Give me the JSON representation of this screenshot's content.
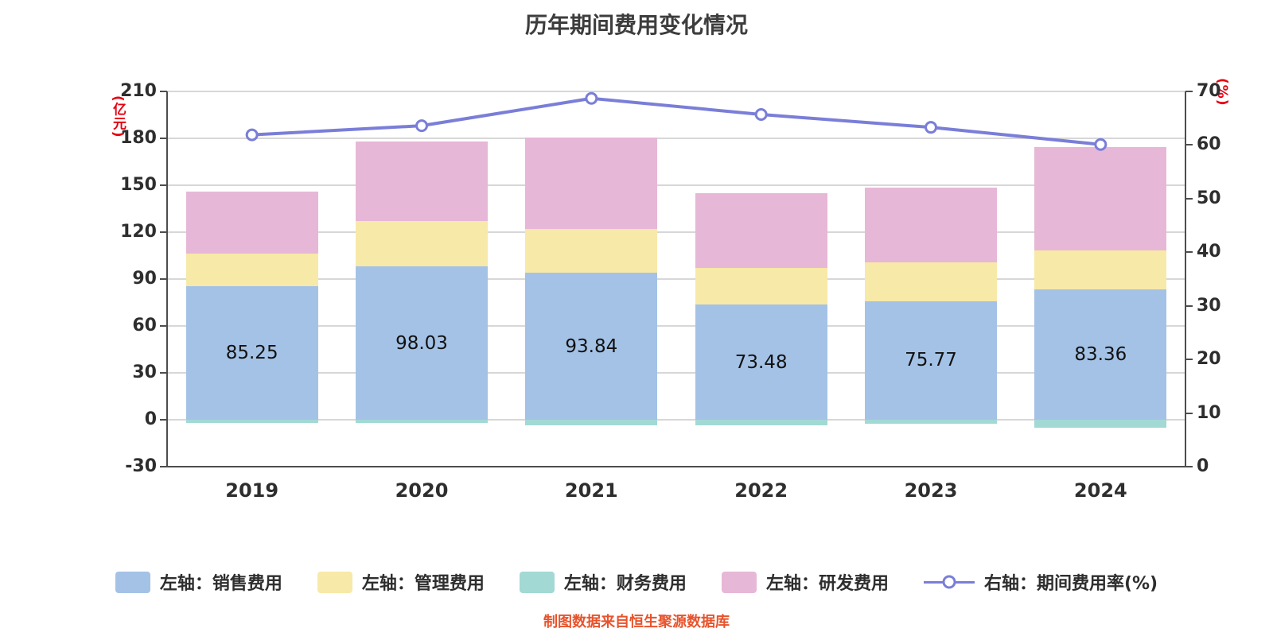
{
  "title": "历年期间费用变化情况",
  "footer": "制图数据来自恒生聚源数据库",
  "left_axis": {
    "unit": "(亿元)",
    "min": -30,
    "max": 210,
    "step": 30
  },
  "right_axis": {
    "unit": "(%)",
    "min": 0,
    "max": 70,
    "step": 10
  },
  "chart_data": {
    "type": "bar",
    "title": "历年期间费用变化情况",
    "categories": [
      "2019",
      "2020",
      "2021",
      "2022",
      "2023",
      "2024"
    ],
    "series": [
      {
        "name": "左轴：销售费用",
        "color": "#a4c2e6",
        "values": [
          85.25,
          98.03,
          93.84,
          73.48,
          75.77,
          83.36
        ],
        "value_labels": [
          "85.25",
          "98.03",
          "93.84",
          "73.48",
          "75.77",
          "83.36"
        ]
      },
      {
        "name": "左轴：管理费用",
        "color": "#f7e9a8",
        "values": [
          21.0,
          29.1,
          28.2,
          23.6,
          24.9,
          24.9
        ]
      },
      {
        "name": "左轴：财务费用",
        "color": "#a2d9d4",
        "values": [
          -2.0,
          -2.0,
          -3.5,
          -3.5,
          -2.5,
          -5.0
        ]
      },
      {
        "name": "左轴：研发费用",
        "color": "#e7b7d7",
        "values": [
          39.6,
          51.0,
          58.4,
          47.8,
          47.8,
          66.1
        ]
      }
    ],
    "line_series": {
      "name": "右轴：期间费用率(%)",
      "color": "#7a7ed8",
      "axis": "right",
      "values": [
        61.9,
        63.6,
        68.7,
        65.7,
        63.3,
        60.1
      ]
    },
    "left_ticks": [
      210,
      180,
      150,
      120,
      90,
      60,
      30,
      0,
      -30
    ],
    "right_ticks": [
      70,
      60,
      50,
      40,
      30,
      20,
      10,
      0
    ],
    "ylabel_left": "(亿元)",
    "ylabel_right": "(%)",
    "ylim_left": [
      -30,
      210
    ],
    "ylim_right": [
      0,
      70
    ],
    "grid": true,
    "legend_position": "bottom"
  }
}
